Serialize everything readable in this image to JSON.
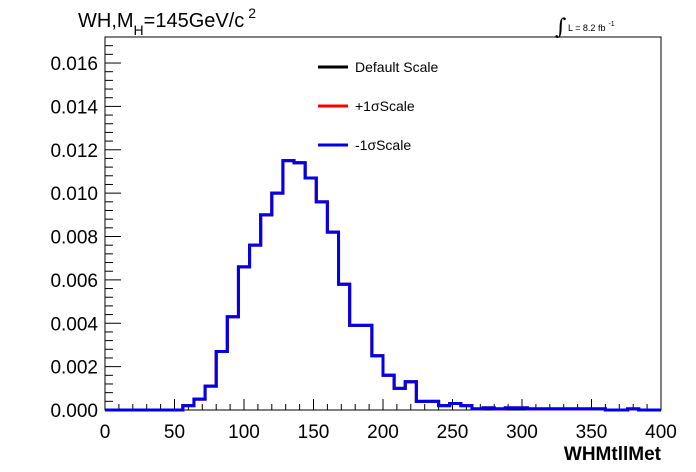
{
  "chart_data": {
    "type": "line",
    "style": "step-histogram",
    "title_main": "WH,M",
    "title_sub": "H",
    "title_rest": "=145GeV/c",
    "title_sup": "2",
    "lumi_main": "L = 8.2 fb",
    "lumi_sup": "-1",
    "xlabel": "WHMtllMet",
    "ylabel": "",
    "xlim": [
      0,
      400
    ],
    "ylim": [
      0,
      0.0172
    ],
    "x_ticks": [
      "0",
      "50",
      "100",
      "150",
      "200",
      "250",
      "300",
      "350",
      "400"
    ],
    "y_ticks": [
      "0.000",
      "0.002",
      "0.004",
      "0.006",
      "0.008",
      "0.010",
      "0.012",
      "0.014",
      "0.016"
    ],
    "grid": false,
    "legend_position": "top-center",
    "bin_edges": [
      0,
      8,
      16,
      24,
      32,
      40,
      48,
      56,
      64,
      72,
      80,
      88,
      96,
      104,
      112,
      120,
      128,
      136,
      144,
      152,
      160,
      168,
      176,
      184,
      192,
      200,
      208,
      216,
      224,
      232,
      240,
      248,
      256,
      264,
      272,
      280,
      288,
      296,
      304,
      312,
      320,
      328,
      336,
      344,
      352,
      360,
      368,
      376,
      384,
      392,
      400
    ],
    "series": [
      {
        "name": "Default Scale",
        "color": "#000000",
        "values": [
          0,
          0,
          0,
          0,
          0,
          0,
          0,
          0.0002,
          0.0005,
          0.0011,
          0.0027,
          0.0043,
          0.0066,
          0.0076,
          0.009,
          0.01,
          0.0115,
          0.0114,
          0.0107,
          0.0096,
          0.0082,
          0.0058,
          0.0039,
          0.0039,
          0.0025,
          0.0016,
          0.001,
          0.0013,
          0.0004,
          0.0004,
          0.0002,
          0.0003,
          0.0002,
          5e-05,
          0.0001,
          5e-05,
          0.0001,
          0.0001,
          5e-05,
          5e-05,
          5e-05,
          5e-05,
          5e-05,
          5e-05,
          5e-05,
          0,
          0,
          5e-05,
          0,
          0
        ]
      },
      {
        "name": "+1σScale",
        "color": "#ff0000",
        "values": [
          0,
          0,
          0,
          0,
          0,
          0,
          0,
          0.0002,
          0.0005,
          0.0011,
          0.0027,
          0.0043,
          0.0066,
          0.0076,
          0.009,
          0.01,
          0.0115,
          0.0114,
          0.0107,
          0.0096,
          0.0082,
          0.0058,
          0.0039,
          0.0039,
          0.0025,
          0.0016,
          0.001,
          0.0013,
          0.0004,
          0.0004,
          0.0002,
          0.0003,
          0.0002,
          5e-05,
          0.0001,
          5e-05,
          0.0001,
          0.0001,
          5e-05,
          5e-05,
          5e-05,
          5e-05,
          5e-05,
          5e-05,
          5e-05,
          0,
          0,
          5e-05,
          0,
          0
        ]
      },
      {
        "name": "-1σScale",
        "color": "#0000ee",
        "values": [
          0,
          0,
          0,
          0,
          0,
          0,
          0,
          0.0002,
          0.0005,
          0.0011,
          0.0027,
          0.0043,
          0.0066,
          0.0076,
          0.009,
          0.01,
          0.0115,
          0.0114,
          0.0107,
          0.0096,
          0.0082,
          0.0058,
          0.0039,
          0.0039,
          0.0025,
          0.0016,
          0.001,
          0.0013,
          0.0004,
          0.0004,
          0.0002,
          0.0003,
          0.0002,
          5e-05,
          0.0001,
          5e-05,
          0.0001,
          0.0001,
          5e-05,
          5e-05,
          5e-05,
          5e-05,
          5e-05,
          5e-05,
          5e-05,
          0,
          0,
          5e-05,
          0,
          0
        ]
      }
    ]
  }
}
